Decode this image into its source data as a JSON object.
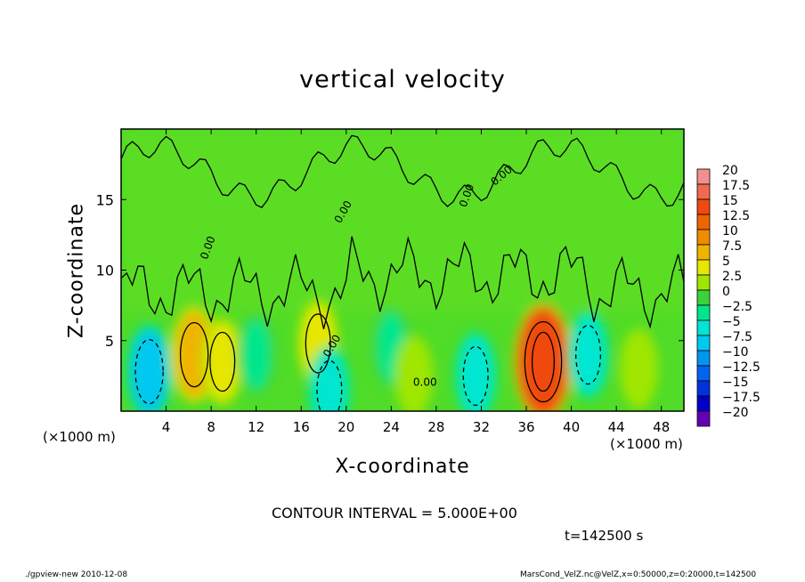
{
  "chart_data": {
    "type": "heatmap",
    "title": "vertical velocity",
    "xlabel": "X-coordinate",
    "ylabel": "Z-coordinate",
    "x_unit_label": "(×1000 m)",
    "xlim": [
      0,
      50
    ],
    "ylim": [
      0,
      20
    ],
    "x_ticks": [
      4,
      8,
      12,
      16,
      20,
      24,
      28,
      32,
      36,
      40,
      44,
      48
    ],
    "y_ticks": [
      5,
      10,
      15
    ],
    "contour_interval_text": "CONTOUR INTERVAL = 5.000E+00",
    "contour_label": "0.00",
    "time_text": "t=142500 s",
    "colorbar": {
      "levels": [
        20,
        17.5,
        15,
        12.5,
        10,
        7.5,
        5,
        2.5,
        0,
        -2.5,
        -5,
        -7.5,
        -10,
        -12.5,
        -15,
        -17.5,
        -20
      ],
      "colors": [
        "#f09090",
        "#f06a50",
        "#f04a10",
        "#f06400",
        "#f08c00",
        "#f0b400",
        "#e6e600",
        "#a0e600",
        "#3cd23c",
        "#00e68c",
        "#00e6d2",
        "#00c8f0",
        "#0096f0",
        "#0064f0",
        "#0032dc",
        "#0000c8",
        "#6400b4"
      ]
    },
    "features": [
      {
        "x": 2.5,
        "z": 2.8,
        "w": -7.5
      },
      {
        "x": 6.5,
        "z": 4.0,
        "w": 7.5
      },
      {
        "x": 9.0,
        "z": 3.5,
        "w": 5
      },
      {
        "x": 12.0,
        "z": 4.0,
        "w": -2.5
      },
      {
        "x": 17.5,
        "z": 4.8,
        "w": 5
      },
      {
        "x": 18.5,
        "z": 1.5,
        "w": -5
      },
      {
        "x": 24.0,
        "z": 4.5,
        "w": -2.5
      },
      {
        "x": 26.0,
        "z": 2.5,
        "w": 2.5
      },
      {
        "x": 31.5,
        "z": 2.5,
        "w": -5
      },
      {
        "x": 37.5,
        "z": 3.5,
        "w": 15
      },
      {
        "x": 41.5,
        "z": 4.0,
        "w": -5
      },
      {
        "x": 46.0,
        "z": 3.0,
        "w": 2.5
      }
    ]
  },
  "footer": {
    "left": "./gpview-new  2010-12-08",
    "right": "MarsCond_VelZ.nc@VelZ,x=0:50000,z=0:20000,t=142500"
  }
}
